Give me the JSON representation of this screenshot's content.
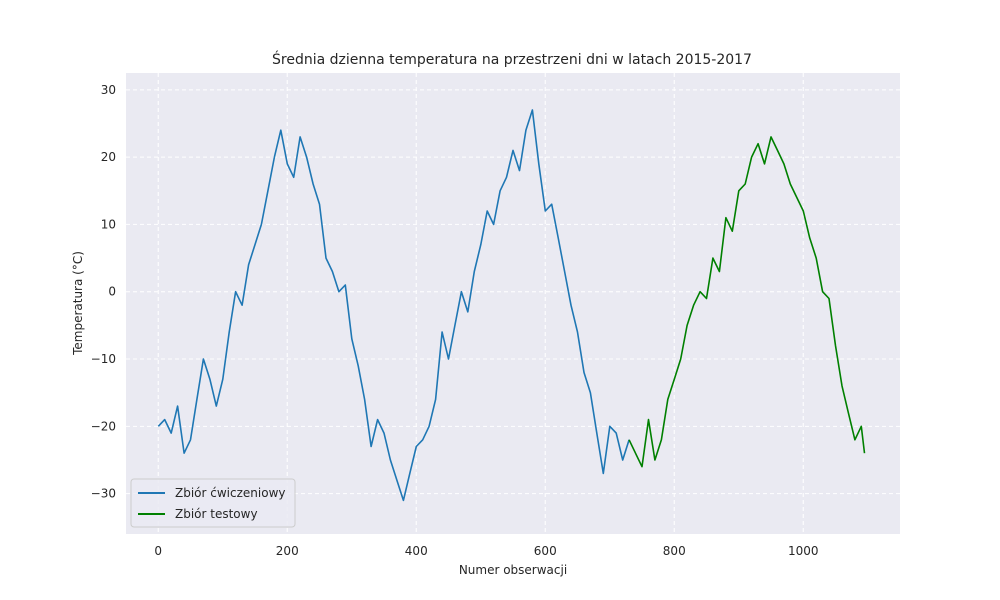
{
  "chart_data": {
    "type": "line",
    "title": "Średnia dzienna temperatura na przestrzeni dni w latach 2015-2017",
    "xlabel": "Numer obserwacji",
    "ylabel": "Temperatura (°C)",
    "xlim": [
      -50,
      1150
    ],
    "ylim": [
      -36,
      32.5
    ],
    "xticks": [
      0,
      200,
      400,
      600,
      800,
      1000
    ],
    "yticks": [
      -30,
      -20,
      -10,
      0,
      10,
      20,
      30
    ],
    "grid": true,
    "grid_style": "dashed",
    "background": "#eaeaf2",
    "legend_position": "lower-left",
    "series": [
      {
        "name": "Zbiór ćwiczeniowy",
        "color": "#1f77b4",
        "x": [
          0,
          10,
          20,
          30,
          40,
          50,
          60,
          70,
          80,
          90,
          100,
          110,
          120,
          130,
          140,
          150,
          160,
          170,
          180,
          190,
          200,
          210,
          220,
          230,
          240,
          250,
          260,
          270,
          280,
          290,
          300,
          310,
          320,
          330,
          340,
          350,
          360,
          370,
          380,
          390,
          400,
          410,
          420,
          430,
          440,
          450,
          460,
          470,
          480,
          490,
          500,
          510,
          520,
          530,
          540,
          550,
          560,
          570,
          580,
          590,
          600,
          610,
          620,
          630,
          640,
          650,
          660,
          670,
          680,
          690,
          700,
          710,
          720,
          730
        ],
        "y": [
          -20,
          -19,
          -21,
          -17,
          -24,
          -22,
          -16,
          -10,
          -13,
          -17,
          -13,
          -6,
          0,
          -2,
          4,
          7,
          10,
          15,
          20,
          24,
          19,
          17,
          23,
          20,
          16,
          13,
          5,
          3,
          0,
          1,
          -7,
          -11,
          -16,
          -23,
          -19,
          -21,
          -25,
          -28,
          -31,
          -27,
          -23,
          -22,
          -20,
          -16,
          -6,
          -10,
          -5,
          0,
          -3,
          3,
          7,
          12,
          10,
          15,
          17,
          21,
          18,
          24,
          27,
          19,
          12,
          13,
          8,
          3,
          -2,
          -6,
          -12,
          -15,
          -21,
          -27,
          -20,
          -21,
          -25,
          -22
        ]
      },
      {
        "name": "Zbiór testowy",
        "color": "#008000",
        "x": [
          730,
          740,
          750,
          760,
          770,
          780,
          790,
          800,
          810,
          820,
          830,
          840,
          850,
          860,
          870,
          880,
          890,
          900,
          910,
          920,
          930,
          940,
          950,
          960,
          970,
          980,
          990,
          1000,
          1010,
          1020,
          1030,
          1040,
          1050,
          1060,
          1070,
          1080,
          1090,
          1095
        ],
        "y": [
          -22,
          -24,
          -26,
          -19,
          -25,
          -22,
          -16,
          -13,
          -10,
          -5,
          -2,
          0,
          -1,
          5,
          3,
          11,
          9,
          15,
          16,
          20,
          22,
          19,
          23,
          21,
          19,
          16,
          14,
          12,
          8,
          5,
          0,
          -1,
          -8,
          -14,
          -18,
          -22,
          -20,
          -24
        ]
      }
    ]
  }
}
